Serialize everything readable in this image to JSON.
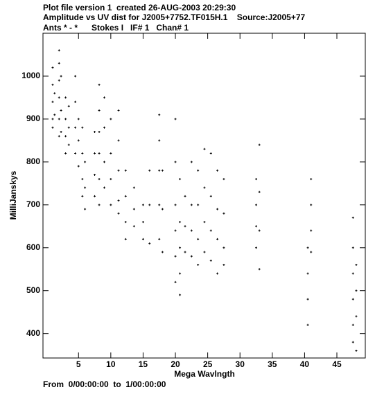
{
  "chart_data": {
    "type": "scatter",
    "title_lines": [
      "Plot file version 1  created 26-AUG-2003 20:29:30",
      "Amplitude vs UV dist for J2005+7752.TF015H.1    Source:J2005+77",
      "Ants * - *      Stokes I   IF# 1   Chan# 1"
    ],
    "xlabel": "Mega Wavlngth",
    "ylabel": "MilliJanskys",
    "footer": "From  0/00:00:00  to  1/00:00:00",
    "color": "#000000",
    "xlim": [
      -0.5,
      49.4
    ],
    "ylim": [
      343,
      1100
    ],
    "xticks": [
      5,
      10,
      15,
      20,
      25,
      30,
      35,
      40,
      45
    ],
    "yticks": [
      400,
      500,
      600,
      700,
      800,
      900,
      1000
    ],
    "x": [
      1.0,
      1.0,
      1.0,
      1.0,
      1.0,
      1.3,
      1.3,
      2.0,
      2.0,
      2.0,
      2.0,
      2.0,
      2.0,
      2.3,
      2.3,
      2.3,
      3.0,
      3.0,
      3.0,
      3.0,
      3.5,
      3.5,
      3.5,
      4.5,
      4.5,
      4.5,
      4.5,
      5.0,
      5.0,
      5.0,
      5.6,
      5.6,
      5.6,
      5.6,
      6.0,
      6.0,
      6.0,
      7.5,
      7.5,
      7.5,
      7.5,
      8.2,
      8.2,
      8.2,
      8.2,
      8.2,
      8.2,
      9.0,
      9.0,
      9.0,
      9.0,
      10.0,
      10.0,
      10.0,
      10.0,
      11.2,
      11.2,
      11.2,
      11.2,
      11.2,
      12.3,
      12.3,
      12.3,
      12.3,
      13.6,
      13.6,
      13.6,
      15.0,
      15.0,
      15.0,
      16.0,
      16.0,
      16.0,
      17.5,
      17.5,
      17.5,
      17.5,
      17.5,
      18.0,
      18.0,
      18.0,
      20.0,
      20.0,
      20.0,
      20.0,
      20.0,
      20.0,
      20.7,
      20.7,
      20.7,
      20.7,
      20.7,
      21.5,
      21.5,
      21.5,
      22.5,
      22.5,
      22.5,
      22.5,
      23.5,
      23.5,
      23.5,
      23.5,
      24.5,
      24.5,
      24.5,
      24.5,
      25.5,
      25.5,
      25.5,
      25.5,
      26.5,
      26.5,
      26.5,
      26.5,
      27.5,
      27.5,
      27.5,
      27.5,
      32.5,
      32.5,
      32.5,
      32.5,
      33.0,
      33.0,
      33.0,
      33.0,
      40.5,
      40.5,
      40.5,
      40.5,
      41.0,
      41.0,
      41.0,
      41.0,
      47.5,
      47.5,
      47.5,
      47.5,
      47.5,
      47.5,
      48.0,
      48.0,
      48.0,
      48.0
    ],
    "y": [
      1020,
      980,
      940,
      900,
      880,
      960,
      910,
      1060,
      1030,
      990,
      950,
      900,
      860,
      1000,
      920,
      870,
      950,
      900,
      860,
      820,
      930,
      880,
      840,
      1000,
      940,
      880,
      820,
      900,
      850,
      790,
      880,
      820,
      760,
      720,
      800,
      740,
      690,
      870,
      820,
      770,
      720,
      980,
      920,
      870,
      820,
      760,
      700,
      950,
      880,
      800,
      740,
      900,
      820,
      760,
      700,
      920,
      850,
      780,
      710,
      680,
      780,
      720,
      660,
      620,
      740,
      690,
      650,
      700,
      660,
      620,
      780,
      700,
      610,
      910,
      850,
      780,
      700,
      620,
      780,
      690,
      590,
      900,
      800,
      700,
      640,
      580,
      520,
      760,
      660,
      600,
      540,
      490,
      720,
      650,
      590,
      800,
      700,
      640,
      580,
      780,
      700,
      620,
      560,
      830,
      740,
      660,
      590,
      820,
      720,
      640,
      570,
      780,
      690,
      620,
      540,
      760,
      680,
      600,
      560,
      760,
      700,
      650,
      600,
      840,
      730,
      640,
      550,
      600,
      540,
      480,
      420,
      760,
      700,
      640,
      590,
      670,
      600,
      540,
      480,
      420,
      380,
      560,
      500,
      440,
      360
    ]
  }
}
